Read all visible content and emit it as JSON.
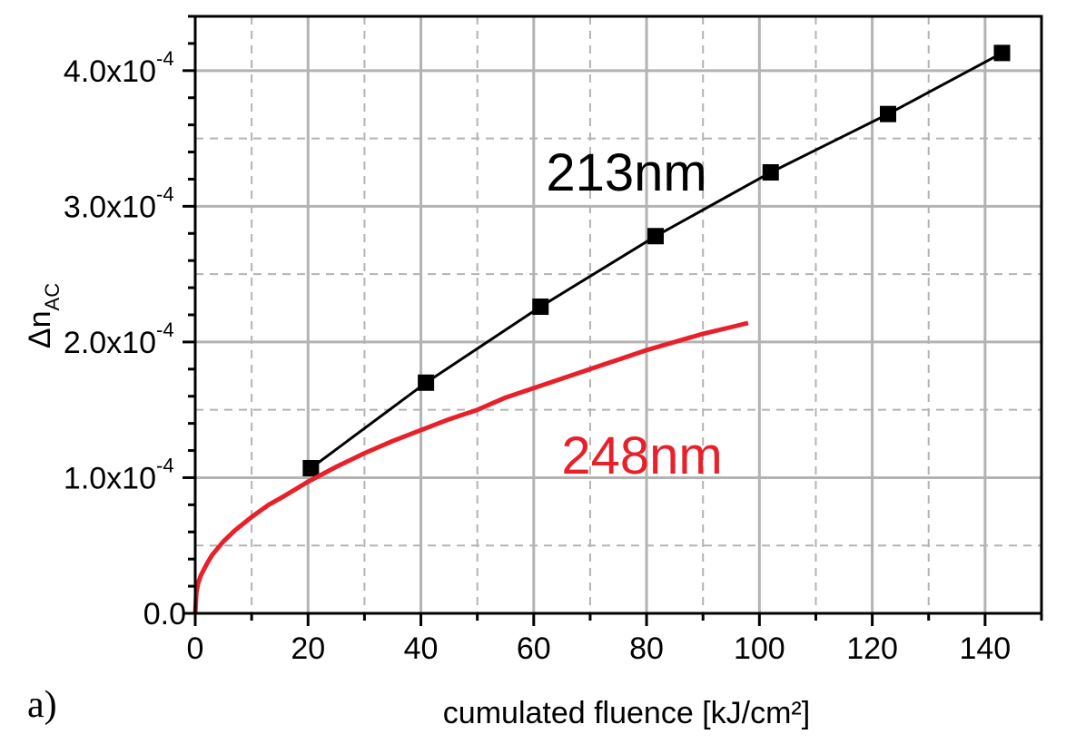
{
  "chart_data": {
    "type": "line",
    "panel_label": "a)",
    "xlabel": "cumulated fluence [kJ/cm²]",
    "ylabel_main": "Δn",
    "ylabel_sub": "AC",
    "xlim": [
      0,
      150
    ],
    "ylim": [
      0,
      0.00044
    ],
    "grid": true,
    "x_ticks": [
      0,
      20,
      40,
      60,
      80,
      100,
      120,
      140
    ],
    "x_tick_labels": [
      "0",
      "20",
      "40",
      "60",
      "80",
      "100",
      "120",
      "140"
    ],
    "y_ticks": [
      0,
      0.0001,
      0.0002,
      0.0003,
      0.0004
    ],
    "y_tick_labels": [
      {
        "mant": "0.0",
        "exp": ""
      },
      {
        "mant": "1.0x10",
        "exp": "-4"
      },
      {
        "mant": "2.0x10",
        "exp": "-4"
      },
      {
        "mant": "3.0x10",
        "exp": "-4"
      },
      {
        "mant": "4.0x10",
        "exp": "-4"
      }
    ],
    "series": [
      {
        "name": "213nm",
        "color": "#000000",
        "marker": "square",
        "x": [
          20.5,
          40.9,
          61.2,
          81.6,
          102.0,
          122.8,
          143.0
        ],
        "y": [
          0.000107,
          0.00017,
          0.000226,
          0.000278,
          0.000325,
          0.000368,
          0.000413
        ]
      },
      {
        "name": "248nm",
        "color": "#e8202a",
        "marker": "none",
        "x": [
          0,
          0.2,
          0.5,
          1,
          2,
          3,
          5,
          7,
          10,
          13,
          16,
          20,
          25,
          30,
          35,
          40,
          45,
          50,
          55,
          60,
          65,
          70,
          75,
          80,
          85,
          90,
          95,
          98
        ],
        "y": [
          0,
          1.5e-05,
          2.2e-05,
          2.8e-05,
          3.6e-05,
          4.3e-05,
          5.3e-05,
          6.1e-05,
          7.1e-05,
          8e-05,
          8.7e-05,
          9.7e-05,
          0.000108,
          0.000118,
          0.000127,
          0.000135,
          0.000143,
          0.00015,
          0.000159,
          0.000166,
          0.000173,
          0.00018,
          0.000187,
          0.000194,
          0.0002,
          0.000206,
          0.000211,
          0.000214
        ]
      }
    ]
  }
}
